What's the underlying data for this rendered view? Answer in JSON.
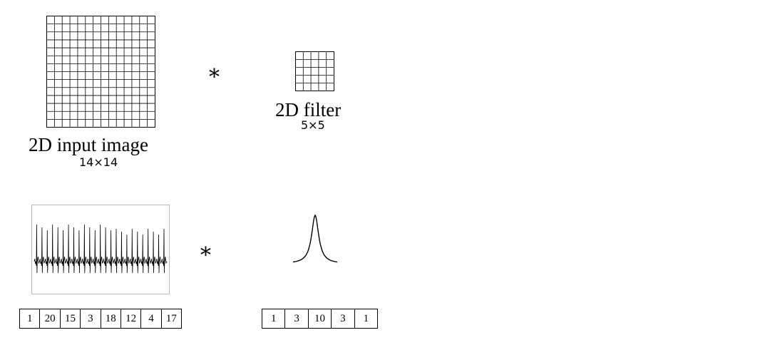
{
  "image_panel": {
    "title": "2D input image",
    "size_label": "14×14",
    "grid_cells": 14
  },
  "operator_symbol": "*",
  "filter_panel": {
    "title": "2D filter",
    "size_label": "5×5",
    "grid_cells": 5
  },
  "signal_sequence": [
    1,
    20,
    15,
    3,
    18,
    12,
    4,
    17
  ],
  "kernel_sequence": [
    1,
    3,
    10,
    3,
    1
  ],
  "colors": {
    "ink": "#000000",
    "plot_border": "#bbbbbb"
  }
}
